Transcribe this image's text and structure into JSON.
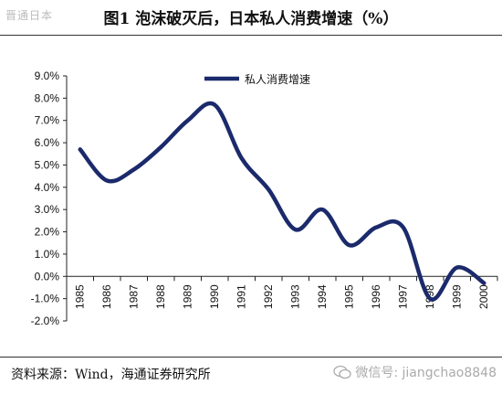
{
  "watermark_top": "晋通日本",
  "title": "图1   泡沫破灭后，日本私人消费增速（%）",
  "source": "资料来源：Wind，海通证券研究所",
  "wechat": {
    "icon": "wechat-icon",
    "text": "微信号: jiangchao8848"
  },
  "chart_data": {
    "type": "line",
    "title": "图1   泡沫破灭后，日本私人消费增速（%）",
    "categories": [
      "1985",
      "1986",
      "1987",
      "1988",
      "1989",
      "1990",
      "1991",
      "1992",
      "1993",
      "1994",
      "1995",
      "1996",
      "1997",
      "1998",
      "1999",
      "2000"
    ],
    "series": [
      {
        "name": "私人消费增速",
        "color": "#1b2a6b",
        "values": [
          5.7,
          4.3,
          4.8,
          5.8,
          7.0,
          7.7,
          5.3,
          3.9,
          2.1,
          3.0,
          1.4,
          2.2,
          2.2,
          -1.0,
          0.4,
          -0.3
        ]
      }
    ],
    "ylim": [
      -2.0,
      9.0
    ],
    "yticks": [
      "-2.0%",
      "-1.0%",
      "0.0%",
      "1.0%",
      "2.0%",
      "3.0%",
      "4.0%",
      "5.0%",
      "6.0%",
      "7.0%",
      "8.0%",
      "9.0%"
    ],
    "legend": "top-center",
    "grid": false
  }
}
